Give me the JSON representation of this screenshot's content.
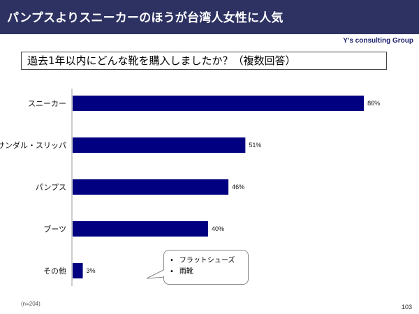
{
  "header": {
    "title": "パンプスよりスニーカーのほうが台湾人女性に人気"
  },
  "brand": "Y’s consulting Group",
  "question": "過去1年以内にどんな靴を購入しましたか？（複数回答）",
  "chart_data": {
    "type": "bar",
    "orientation": "horizontal",
    "categories": [
      "スニーカー",
      "サンダル・スリッパ",
      "パンプス",
      "ブーツ",
      "その他"
    ],
    "values": [
      86,
      51,
      46,
      40,
      3
    ],
    "value_labels": [
      "86%",
      "51%",
      "46%",
      "40%",
      "3%"
    ],
    "unit": "%",
    "xlim": [
      0,
      100
    ],
    "bar_color": "#000080",
    "grid": false,
    "legend": "none"
  },
  "callout": {
    "items": [
      "フラットシューズ",
      "雨靴"
    ]
  },
  "sample_size": "(n=204)",
  "page_number": "103"
}
